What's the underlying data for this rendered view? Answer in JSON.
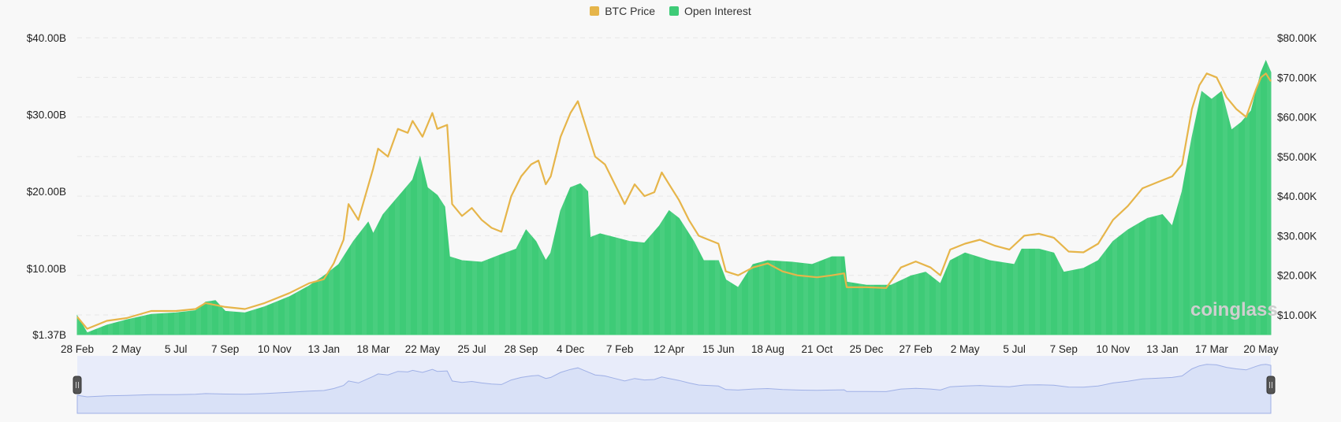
{
  "legend": {
    "price_label": "BTC Price",
    "oi_label": "Open Interest"
  },
  "watermark": "coinglass",
  "colors": {
    "price": "#e6b54a",
    "oi": "#3ecb77",
    "grid": "#e6e6e6",
    "navigator_fill": "#d9e1f7",
    "navigator_line": "#9fb0e6"
  },
  "chart_data": {
    "type": "area",
    "left_y_axis": {
      "series": "Open Interest",
      "ticks": [
        "$1.37B",
        "$10.00B",
        "$20.00B",
        "$30.00B",
        "$40.00B"
      ],
      "tick_values": [
        1.37,
        10,
        20,
        30,
        40
      ],
      "range": [
        1.37,
        40
      ]
    },
    "right_y_axis": {
      "series": "BTC Price",
      "ticks": [
        "$10.00K",
        "$20.00K",
        "$30.00K",
        "$40.00K",
        "$50.00K",
        "$60.00K",
        "$70.00K",
        "$80.00K"
      ],
      "tick_values": [
        10,
        20,
        30,
        40,
        50,
        60,
        70,
        80
      ],
      "range": [
        5,
        80
      ]
    },
    "x_ticks": [
      "28 Feb",
      "2 May",
      "5 Jul",
      "7 Sep",
      "10 Nov",
      "13 Jan",
      "18 Mar",
      "22 May",
      "25 Jul",
      "28 Sep",
      "4 Dec",
      "7 Feb",
      "12 Apr",
      "15 Jun",
      "18 Aug",
      "21 Oct",
      "25 Dec",
      "27 Feb",
      "2 May",
      "5 Jul",
      "7 Sep",
      "10 Nov",
      "13 Jan",
      "17 Mar",
      "20 May"
    ],
    "x_index_range": [
      0,
      24.2
    ],
    "series": [
      {
        "name": "Open Interest",
        "unit": "$B",
        "points": [
          [
            0,
            3.8
          ],
          [
            0.2,
            1.6
          ],
          [
            0.6,
            2.6
          ],
          [
            1.0,
            3.3
          ],
          [
            1.5,
            4.0
          ],
          [
            2.0,
            4.2
          ],
          [
            2.4,
            4.5
          ],
          [
            2.6,
            5.6
          ],
          [
            2.8,
            5.8
          ],
          [
            3.0,
            4.4
          ],
          [
            3.4,
            4.2
          ],
          [
            3.8,
            5.0
          ],
          [
            4.3,
            6.3
          ],
          [
            4.7,
            7.7
          ],
          [
            5.0,
            9.0
          ],
          [
            5.3,
            10.5
          ],
          [
            5.6,
            13.5
          ],
          [
            5.9,
            16.0
          ],
          [
            6.0,
            14.5
          ],
          [
            6.2,
            17.0
          ],
          [
            6.4,
            18.5
          ],
          [
            6.6,
            20.0
          ],
          [
            6.8,
            21.5
          ],
          [
            6.95,
            24.5
          ],
          [
            7.1,
            20.5
          ],
          [
            7.3,
            19.5
          ],
          [
            7.45,
            18.0
          ],
          [
            7.55,
            11.5
          ],
          [
            7.8,
            11.0
          ],
          [
            8.2,
            10.8
          ],
          [
            8.6,
            11.8
          ],
          [
            8.9,
            12.5
          ],
          [
            9.1,
            15.0
          ],
          [
            9.3,
            13.5
          ],
          [
            9.5,
            11.0
          ],
          [
            9.6,
            12.0
          ],
          [
            9.8,
            17.5
          ],
          [
            10.0,
            20.5
          ],
          [
            10.2,
            21.0
          ],
          [
            10.35,
            20.0
          ],
          [
            10.4,
            14.0
          ],
          [
            10.6,
            14.5
          ],
          [
            10.9,
            14.0
          ],
          [
            11.2,
            13.5
          ],
          [
            11.5,
            13.3
          ],
          [
            11.8,
            15.5
          ],
          [
            12.0,
            17.5
          ],
          [
            12.2,
            16.5
          ],
          [
            12.5,
            13.5
          ],
          [
            12.7,
            11.0
          ],
          [
            13.0,
            11.0
          ],
          [
            13.15,
            8.5
          ],
          [
            13.4,
            7.5
          ],
          [
            13.7,
            10.5
          ],
          [
            14.0,
            11.0
          ],
          [
            14.5,
            10.8
          ],
          [
            14.9,
            10.5
          ],
          [
            15.3,
            11.5
          ],
          [
            15.55,
            11.5
          ],
          [
            15.6,
            8.2
          ],
          [
            16.0,
            7.8
          ],
          [
            16.5,
            7.8
          ],
          [
            16.9,
            9.0
          ],
          [
            17.2,
            9.5
          ],
          [
            17.5,
            8.0
          ],
          [
            17.7,
            11.0
          ],
          [
            18.0,
            12.0
          ],
          [
            18.5,
            11.0
          ],
          [
            19.0,
            10.5
          ],
          [
            19.15,
            12.5
          ],
          [
            19.5,
            12.5
          ],
          [
            19.8,
            12.0
          ],
          [
            20.0,
            9.5
          ],
          [
            20.4,
            10.0
          ],
          [
            20.7,
            11.0
          ],
          [
            21.0,
            13.5
          ],
          [
            21.3,
            15.0
          ],
          [
            21.7,
            16.5
          ],
          [
            22.0,
            17.0
          ],
          [
            22.2,
            15.5
          ],
          [
            22.4,
            20.0
          ],
          [
            22.6,
            27.0
          ],
          [
            22.8,
            33.0
          ],
          [
            23.0,
            32.0
          ],
          [
            23.2,
            33.0
          ],
          [
            23.4,
            28.0
          ],
          [
            23.6,
            29.0
          ],
          [
            23.8,
            30.5
          ],
          [
            24.0,
            35.5
          ],
          [
            24.1,
            37.0
          ],
          [
            24.2,
            35.5
          ]
        ]
      },
      {
        "name": "BTC Price",
        "unit": "$K",
        "points": [
          [
            0,
            9.5
          ],
          [
            0.2,
            6.5
          ],
          [
            0.6,
            8.5
          ],
          [
            1.0,
            9.2
          ],
          [
            1.5,
            11.0
          ],
          [
            2.0,
            11.0
          ],
          [
            2.4,
            11.5
          ],
          [
            2.6,
            13.0
          ],
          [
            3.0,
            12.0
          ],
          [
            3.4,
            11.5
          ],
          [
            3.8,
            13.0
          ],
          [
            4.3,
            15.5
          ],
          [
            4.7,
            18.0
          ],
          [
            5.0,
            19.0
          ],
          [
            5.2,
            23.0
          ],
          [
            5.4,
            29.0
          ],
          [
            5.5,
            38.0
          ],
          [
            5.7,
            34.0
          ],
          [
            6.0,
            47.0
          ],
          [
            6.1,
            52.0
          ],
          [
            6.3,
            50.0
          ],
          [
            6.5,
            57.0
          ],
          [
            6.7,
            56.0
          ],
          [
            6.8,
            59.0
          ],
          [
            7.0,
            55.0
          ],
          [
            7.2,
            61.0
          ],
          [
            7.3,
            57.0
          ],
          [
            7.5,
            58.0
          ],
          [
            7.6,
            38.0
          ],
          [
            7.8,
            35.0
          ],
          [
            8.0,
            37.0
          ],
          [
            8.2,
            34.0
          ],
          [
            8.4,
            32.0
          ],
          [
            8.6,
            31.0
          ],
          [
            8.8,
            40.0
          ],
          [
            9.0,
            45.0
          ],
          [
            9.2,
            48.0
          ],
          [
            9.35,
            49.0
          ],
          [
            9.5,
            43.0
          ],
          [
            9.6,
            45.0
          ],
          [
            9.8,
            55.0
          ],
          [
            10.0,
            61.0
          ],
          [
            10.15,
            64.0
          ],
          [
            10.3,
            58.0
          ],
          [
            10.5,
            50.0
          ],
          [
            10.7,
            48.0
          ],
          [
            10.9,
            43.0
          ],
          [
            11.1,
            38.0
          ],
          [
            11.3,
            43.0
          ],
          [
            11.5,
            40.0
          ],
          [
            11.7,
            41.0
          ],
          [
            11.85,
            46.0
          ],
          [
            12.0,
            43.0
          ],
          [
            12.2,
            39.0
          ],
          [
            12.4,
            34.0
          ],
          [
            12.6,
            30.0
          ],
          [
            12.8,
            29.0
          ],
          [
            13.0,
            28.0
          ],
          [
            13.15,
            21.0
          ],
          [
            13.4,
            20.0
          ],
          [
            13.7,
            22.0
          ],
          [
            14.0,
            23.0
          ],
          [
            14.3,
            21.0
          ],
          [
            14.6,
            20.0
          ],
          [
            15.0,
            19.5
          ],
          [
            15.3,
            20.0
          ],
          [
            15.55,
            20.5
          ],
          [
            15.6,
            17.0
          ],
          [
            16.0,
            17.0
          ],
          [
            16.4,
            16.8
          ],
          [
            16.7,
            22.0
          ],
          [
            17.0,
            23.5
          ],
          [
            17.3,
            22.0
          ],
          [
            17.5,
            20.0
          ],
          [
            17.7,
            26.5
          ],
          [
            18.0,
            28.0
          ],
          [
            18.3,
            29.0
          ],
          [
            18.6,
            27.5
          ],
          [
            18.9,
            26.5
          ],
          [
            19.2,
            30.0
          ],
          [
            19.5,
            30.5
          ],
          [
            19.8,
            29.5
          ],
          [
            20.1,
            26.0
          ],
          [
            20.4,
            25.8
          ],
          [
            20.7,
            28.0
          ],
          [
            21.0,
            34.0
          ],
          [
            21.3,
            37.5
          ],
          [
            21.6,
            42.0
          ],
          [
            21.9,
            43.5
          ],
          [
            22.2,
            45.0
          ],
          [
            22.4,
            48.0
          ],
          [
            22.6,
            62.0
          ],
          [
            22.75,
            68.0
          ],
          [
            22.9,
            71.0
          ],
          [
            23.1,
            70.0
          ],
          [
            23.3,
            65.0
          ],
          [
            23.5,
            62.0
          ],
          [
            23.7,
            60.0
          ],
          [
            23.9,
            67.0
          ],
          [
            24.0,
            70.0
          ],
          [
            24.1,
            71.0
          ],
          [
            24.2,
            69.0
          ]
        ]
      }
    ],
    "grid": true,
    "legend_position": "top-center",
    "navigator": true
  }
}
